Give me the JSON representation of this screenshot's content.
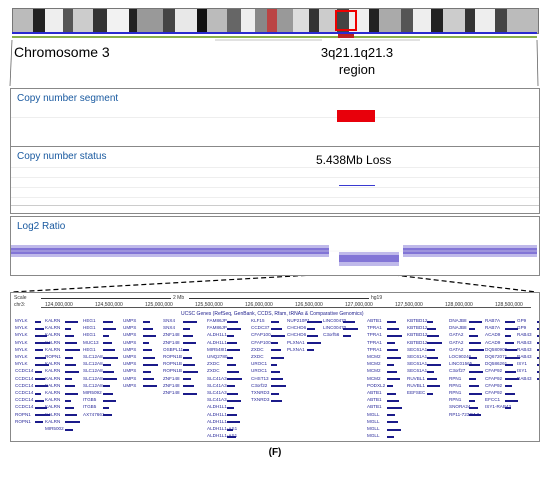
{
  "ideogram": {
    "chromosome_label": "Chromosome 3",
    "region_label_line1": "3q21.1q21.3",
    "region_label_line2": "region"
  },
  "panels": {
    "copy_number_segment": {
      "title": "Copy number segment",
      "segment_color": "#e8000b"
    },
    "copy_number_status": {
      "title": "Copy number status",
      "annotation": "5.438Mb Loss"
    },
    "log2_ratio": {
      "title": "Log2 Ratio",
      "point_color": "#6a5acd"
    }
  },
  "ucsc": {
    "scale_label": "Scale",
    "chrom_label": "chr3:",
    "scale_bar": "2 Mb",
    "assembly": "hg19",
    "positions": [
      "124,000,000",
      "124,500,000",
      "125,000,000",
      "125,500,000",
      "126,000,000",
      "126,500,000",
      "127,000,000",
      "127,500,000",
      "128,000,000",
      "128,500,000"
    ],
    "track_title": "UCSC Genes (RefSeq, GenBank, CCDS, Rfam, tRNAs & Comparative Genomics)",
    "gene_columns": [
      [
        "MYLK",
        "MYLK",
        "MYLK",
        "MYLK",
        "MYLK",
        "MYLK",
        "MYLK",
        "CCDC14",
        "CCDC14",
        "CCDC14",
        "CCDC14",
        "CCDC14",
        "CCDC14",
        "ROPN1",
        "ROPN1"
      ],
      [
        "KALRN",
        "KALRN",
        "KALRN",
        "KALRN",
        "KALRN",
        "ROPN1",
        "KALRN",
        "KALRN",
        "KALRN",
        "KALRN",
        "KALRN",
        "KALRN",
        "KALRN",
        "KALRN",
        "KALRN",
        "MIR5002"
      ],
      [
        "HEG1",
        "HEG1",
        "HEG1",
        "MUC13",
        "HEG1",
        "SLC12A8",
        "SLC12A8",
        "SLC12A8",
        "SLC12A8",
        "SLC12A8",
        "MIR5092",
        "ITGB5",
        "ITGB5",
        "AX747661"
      ],
      [
        "UMPS",
        "UMPS",
        "UMPS",
        "UMPS",
        "UMPS",
        "UMPS",
        "UMPS",
        "UMPS",
        "UMPS",
        "UMPS"
      ],
      [
        "SNX4",
        "SNX4",
        "ZNF148",
        "ZNF148",
        "OSBPL11",
        "ROPN1B",
        "ROPN1B",
        "ROPN1B",
        "ZNF148",
        "ZNF148",
        "ZNF148"
      ],
      [
        "FAM86JP",
        "FAM86JP",
        "ALDH1L1",
        "ALDH1L1",
        "MIR548I1",
        "UNQ2780",
        "ZXDC",
        "ZXDC",
        "SLC41A3",
        "SLC41A3",
        "SLC41A3",
        "SLC41A3",
        "ALDH1L1",
        "ALDH1L1",
        "ALDH1L1",
        "ALDH1L1-AS1",
        "ALDH1L1-AS1"
      ],
      [
        "KLF15",
        "CCDC37",
        "CFAP100",
        "CFAP100",
        "ZXDC",
        "ZXDC",
        "UROC1",
        "UROC1",
        "CHST13",
        "C3orf22",
        "TXNRD3",
        "TXNRD3"
      ],
      [
        "NUP210P1",
        "CHCHD6",
        "CHCHD6",
        "PLXNA1",
        "PLXNA1"
      ],
      [
        "LINC00470",
        "LINC00470",
        "C3orf56"
      ],
      [
        "ABTB1",
        "TPRA1",
        "TPRA1",
        "TPRA1",
        "TPRA1",
        "MCM2",
        "MCM2",
        "MCM2",
        "MCM2",
        "PODXL2",
        "ABTB1",
        "ABTB1",
        "ABTB1",
        "MGLL",
        "MGLL",
        "MGLL",
        "MGLL",
        "MGLL",
        "MGLL"
      ],
      [
        "KBTBD12",
        "KBTBD12",
        "KBTBD12",
        "KBTBD12",
        "SEC61A1",
        "SEC61A1",
        "SEC61A1",
        "SEC61A1",
        "RUVBL1",
        "RUVBL1",
        "EEFSEC"
      ],
      [
        "DNAJB8",
        "DNAJB8",
        "GATA2",
        "GATA2",
        "GATA2",
        "LOC90246",
        "LINC01565",
        "C3orf27",
        "RPN1",
        "RPN1",
        "RPN1",
        "RPN1",
        "SNORA24",
        "RP11-723O4.2"
      ],
      [
        "RAB7A",
        "RAB7A",
        "ACAD9",
        "ACAD9",
        "DQ580909",
        "DQ672071",
        "DQ586261",
        "CFAP92",
        "CFAP92",
        "CFAP92",
        "CFAP92",
        "EFCC1",
        "ISY1-RAB43"
      ],
      [
        "GP9",
        "GP9",
        "RAB43",
        "RAB43",
        "RAB43",
        "RAB43",
        "ISY1",
        "ISY1",
        "RAB43"
      ]
    ]
  },
  "figure_label": "(F)"
}
